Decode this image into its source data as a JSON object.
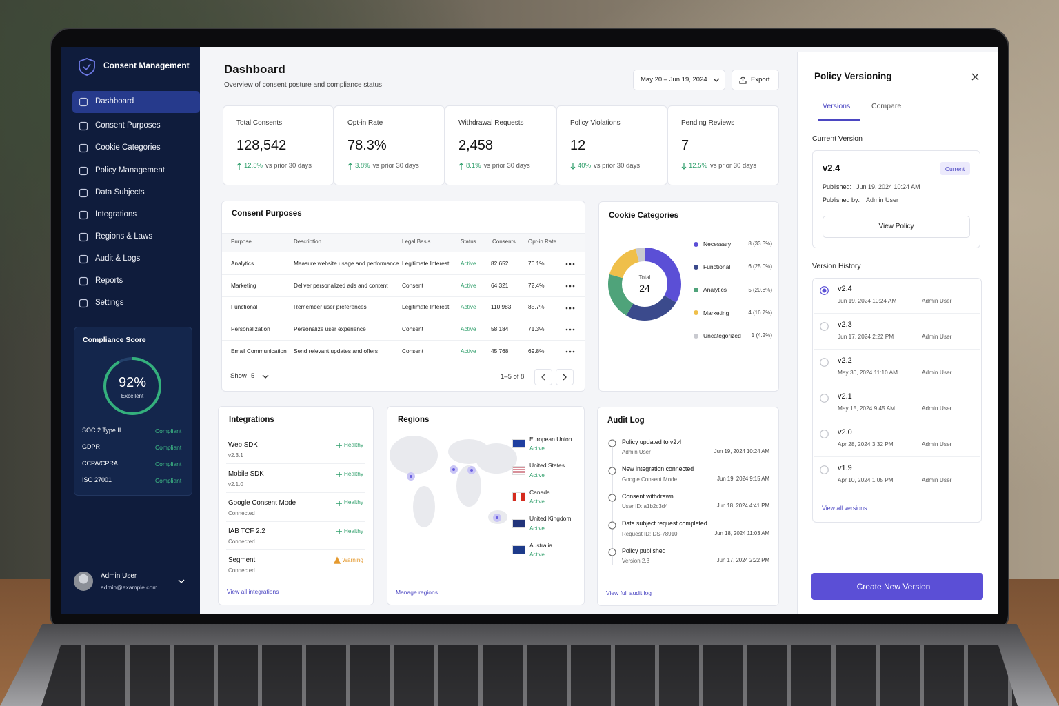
{
  "sidebar": {
    "brand": "Consent Management",
    "nav": [
      "Dashboard",
      "Consent Purposes",
      "Cookie Categories",
      "Policy Management",
      "Data Subjects",
      "Integrations",
      "Regions & Laws",
      "Audit & Logs",
      "Reports",
      "Settings"
    ],
    "active": 0,
    "compliance": {
      "title": "Compliance Score",
      "score": {
        "value": 92,
        "label": "92%"
      },
      "rating": "Excellent",
      "items": [
        {
          "name": "SOC 2 Type II",
          "status": "Compliant"
        },
        {
          "name": "GDPR",
          "status": "Compliant"
        },
        {
          "name": "CCPA/CPRA",
          "status": "Compliant"
        },
        {
          "name": "ISO 27001",
          "status": "Compliant"
        }
      ]
    },
    "user": {
      "name": "Admin User",
      "email": "admin@example.com"
    }
  },
  "header": {
    "title": "Dashboard",
    "subtitle": "Overview of consent posture and compliance status",
    "date_range": "May 20 – Jun 19, 2024",
    "export": "Export"
  },
  "kpis": [
    {
      "label": "Total Consents",
      "value": "128,542",
      "change": "12.5%",
      "note": "vs prior 30 days",
      "direction": "up"
    },
    {
      "label": "Opt-in Rate",
      "value": "78.3%",
      "change": "3.8%",
      "note": "vs prior 30 days",
      "direction": "up"
    },
    {
      "label": "Withdrawal Requests",
      "value": "2,458",
      "change": "8.1%",
      "note": "vs prior 30 days",
      "direction": "up"
    },
    {
      "label": "Policy Violations",
      "value": "12",
      "change": "40%",
      "note": "vs prior 30 days",
      "direction": "down"
    },
    {
      "label": "Pending Reviews",
      "value": "7",
      "change": "12.5%",
      "note": "vs prior 30 days",
      "direction": "down"
    }
  ],
  "consent_purposes": {
    "title": "Consent Purposes",
    "columns": [
      "Purpose",
      "Description",
      "Legal Basis",
      "Status",
      "Consents",
      "Opt-in Rate"
    ],
    "rows": [
      [
        "Analytics",
        "Measure website usage and performance",
        "Legitimate Interest",
        "Active",
        "82,652",
        "76.1%"
      ],
      [
        "Marketing",
        "Deliver personalized ads and content",
        "Consent",
        "Active",
        "64,321",
        "72.4%"
      ],
      [
        "Functional",
        "Remember user preferences",
        "Legitimate Interest",
        "Active",
        "110,983",
        "85.7%"
      ],
      [
        "Personalization",
        "Personalize user experience",
        "Consent",
        "Active",
        "58,184",
        "71.3%"
      ],
      [
        "Email Communication",
        "Send relevant updates and offers",
        "Consent",
        "Active",
        "45,768",
        "69.8%"
      ]
    ],
    "show_label": "Show",
    "page_size": "5",
    "range": "1–5 of 8"
  },
  "cookie_categories": {
    "title": "Cookie Categories",
    "total_label": "Total",
    "total": 24,
    "items": [
      {
        "name": "Necessary",
        "count": 8,
        "label": "8 (33.3%)",
        "color": "#5b4fd6"
      },
      {
        "name": "Functional",
        "count": 6,
        "label": "6 (25.0%)",
        "color": "#3b4a8c"
      },
      {
        "name": "Analytics",
        "count": 5,
        "label": "5 (20.8%)",
        "color": "#4fa37a"
      },
      {
        "name": "Marketing",
        "count": 4,
        "label": "4 (16.7%)",
        "color": "#efbf4a"
      },
      {
        "name": "Uncategorized",
        "count": 1,
        "label": "1 (4.2%)",
        "color": "#c9cad0"
      }
    ]
  },
  "integrations": {
    "title": "Integrations",
    "items": [
      {
        "name": "Web SDK",
        "sub": "v2.3.1",
        "status": "Healthy",
        "color": "#2e9e6a"
      },
      {
        "name": "Mobile SDK",
        "sub": "v2.1.0",
        "status": "Healthy",
        "color": "#2e9e6a"
      },
      {
        "name": "Google Consent Mode",
        "sub": "Connected",
        "status": "Healthy",
        "color": "#2e9e6a"
      },
      {
        "name": "IAB TCF 2.2",
        "sub": "Connected",
        "status": "Healthy",
        "color": "#2e9e6a"
      },
      {
        "name": "Segment",
        "sub": "Connected",
        "status": "Warning",
        "color": "#e59a2f"
      }
    ],
    "link": "View all integrations"
  },
  "regions": {
    "title": "Regions",
    "items": [
      {
        "name": "European Union",
        "status": "Active"
      },
      {
        "name": "United States",
        "status": "Active"
      },
      {
        "name": "Canada",
        "status": "Active"
      },
      {
        "name": "United Kingdom",
        "status": "Active"
      },
      {
        "name": "Australia",
        "status": "Active"
      }
    ],
    "link": "Manage regions"
  },
  "audit_log": {
    "title": "Audit Log",
    "items": [
      {
        "title": "Policy updated to v2.4",
        "sub": "Admin User",
        "time": "Jun 19, 2024 10:24 AM"
      },
      {
        "title": "New integration connected",
        "sub": "Google Consent Mode",
        "time": "Jun 19, 2024 9:15 AM"
      },
      {
        "title": "Consent withdrawn",
        "sub": "User ID: a1b2c3d4",
        "time": "Jun 18, 2024 4:41 PM"
      },
      {
        "title": "Data subject request completed",
        "sub": "Request ID: DS-78910",
        "time": "Jun 18, 2024 11:03 AM"
      },
      {
        "title": "Policy published",
        "sub": "Version 2.3",
        "time": "Jun 17, 2024 2:22 PM"
      }
    ],
    "link": "View full audit log"
  },
  "policy_panel": {
    "title": "Policy Versioning",
    "tabs": [
      "Versions",
      "Compare"
    ],
    "active_tab": 0,
    "current_heading": "Current Version",
    "current": {
      "version": "v2.4",
      "badge": "Current",
      "published_label": "Published:",
      "published": "Jun 19, 2024 10:24 AM",
      "by_label": "Published by:",
      "by": "Admin User",
      "button": "View Policy"
    },
    "history_heading": "Version History",
    "selected": 0,
    "versions": [
      {
        "version": "v2.4",
        "date": "Jun 19, 2024 10:24 AM",
        "author": "Admin User"
      },
      {
        "version": "v2.3",
        "date": "Jun 17, 2024 2:22 PM",
        "author": "Admin User"
      },
      {
        "version": "v2.2",
        "date": "May 30, 2024 11:10 AM",
        "author": "Admin User"
      },
      {
        "version": "v2.1",
        "date": "May 15, 2024 9:45 AM",
        "author": "Admin User"
      },
      {
        "version": "v2.0",
        "date": "Apr 28, 2024 3:32 PM",
        "author": "Admin User"
      },
      {
        "version": "v1.9",
        "date": "Apr 10, 2024 1:05 PM",
        "author": "Admin User"
      }
    ],
    "link": "View all versions",
    "create_button": "Create New Version"
  }
}
